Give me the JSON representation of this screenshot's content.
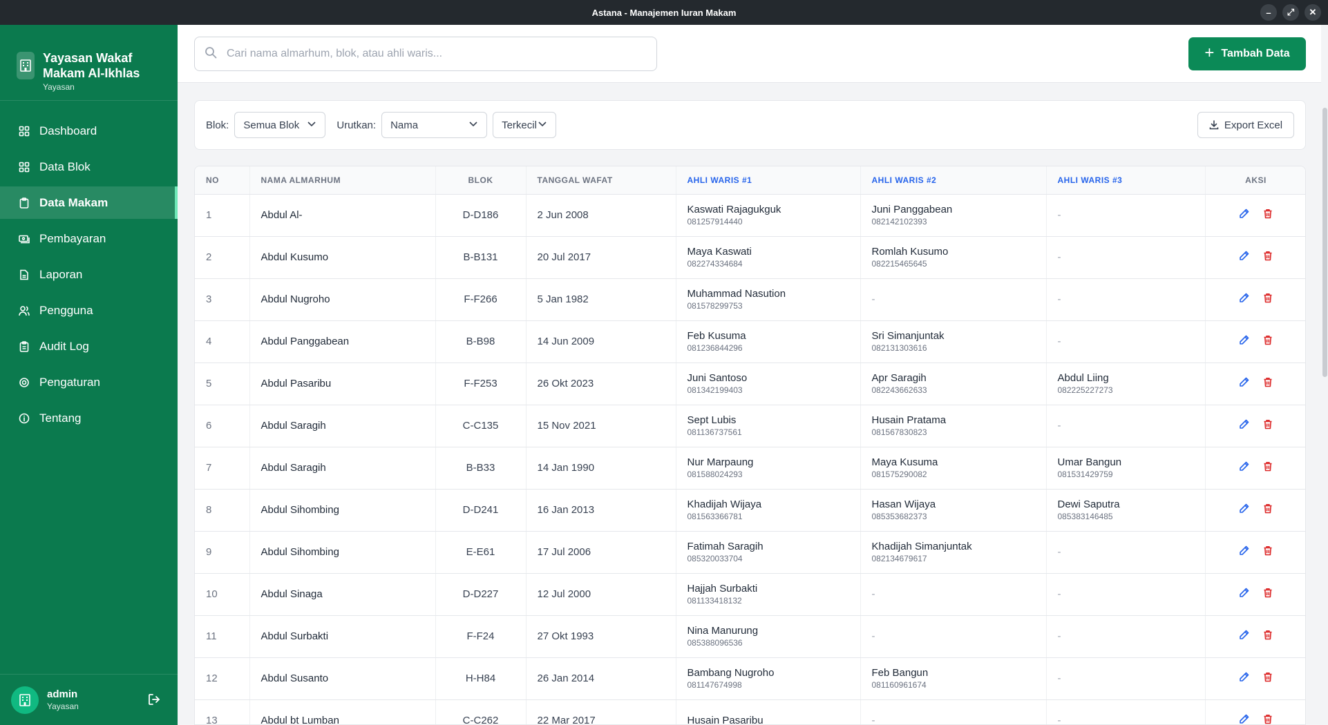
{
  "window": {
    "title": "Astana - Manajemen Iuran Makam"
  },
  "sidebar": {
    "org_name": "Yayasan Wakaf Makam Al-Ikhlas",
    "org_type": "Yayasan",
    "items": [
      {
        "label": "Dashboard",
        "icon": "grid-icon"
      },
      {
        "label": "Data Blok",
        "icon": "grid-icon"
      },
      {
        "label": "Data Makam",
        "icon": "clipboard-icon",
        "active": true
      },
      {
        "label": "Pembayaran",
        "icon": "payment-icon"
      },
      {
        "label": "Laporan",
        "icon": "document-icon"
      },
      {
        "label": "Pengguna",
        "icon": "users-icon"
      },
      {
        "label": "Audit Log",
        "icon": "clipboard-list-icon"
      },
      {
        "label": "Pengaturan",
        "icon": "gear-icon"
      },
      {
        "label": "Tentang",
        "icon": "info-icon"
      }
    ],
    "user": {
      "name": "admin",
      "role": "Yayasan"
    }
  },
  "header": {
    "search_placeholder": "Cari nama almarhum, blok, atau ahli waris...",
    "add_label": "Tambah Data"
  },
  "filters": {
    "blok_label": "Blok:",
    "blok_value": "Semua Blok",
    "sort_label": "Urutkan:",
    "sort_value": "Nama",
    "order_value": "Terkecil",
    "export_label": "Export Excel"
  },
  "colors": {
    "sidebar": "#0b7a4e",
    "primary": "#0b8a57",
    "heir_header": "#2563eb",
    "edit": "#2563eb",
    "delete": "#dc2626"
  },
  "table": {
    "headers": [
      "NO",
      "NAMA ALMARHUM",
      "BLOK",
      "TANGGAL WAFAT",
      "AHLI WARIS #1",
      "AHLI WARIS #2",
      "AHLI WARIS #3",
      "AKSI"
    ],
    "rows": [
      {
        "no": "1",
        "name": "Abdul Al-",
        "blok": "D-D186",
        "date": "2 Jun 2008",
        "h1": "Kaswati Rajagukguk",
        "p1": "081257914440",
        "h2": "Juni Panggabean",
        "p2": "082142102393",
        "h3": "",
        "p3": ""
      },
      {
        "no": "2",
        "name": "Abdul Kusumo",
        "blok": "B-B131",
        "date": "20 Jul 2017",
        "h1": "Maya Kaswati",
        "p1": "082274334684",
        "h2": "Romlah Kusumo",
        "p2": "082215465645",
        "h3": "",
        "p3": ""
      },
      {
        "no": "3",
        "name": "Abdul Nugroho",
        "blok": "F-F266",
        "date": "5 Jan 1982",
        "h1": "Muhammad Nasution",
        "p1": "081578299753",
        "h2": "",
        "p2": "",
        "h3": "",
        "p3": ""
      },
      {
        "no": "4",
        "name": "Abdul Panggabean",
        "blok": "B-B98",
        "date": "14 Jun 2009",
        "h1": "Feb Kusuma",
        "p1": "081236844296",
        "h2": "Sri Simanjuntak",
        "p2": "082131303616",
        "h3": "",
        "p3": ""
      },
      {
        "no": "5",
        "name": "Abdul Pasaribu",
        "blok": "F-F253",
        "date": "26 Okt 2023",
        "h1": "Juni Santoso",
        "p1": "081342199403",
        "h2": "Apr Saragih",
        "p2": "082243662633",
        "h3": "Abdul Liing",
        "p3": "082225227273"
      },
      {
        "no": "6",
        "name": "Abdul Saragih",
        "blok": "C-C135",
        "date": "15 Nov 2021",
        "h1": "Sept Lubis",
        "p1": "081136737561",
        "h2": "Husain Pratama",
        "p2": "081567830823",
        "h3": "",
        "p3": ""
      },
      {
        "no": "7",
        "name": "Abdul Saragih",
        "blok": "B-B33",
        "date": "14 Jan 1990",
        "h1": "Nur Marpaung",
        "p1": "081588024293",
        "h2": "Maya Kusuma",
        "p2": "081575290082",
        "h3": "Umar Bangun",
        "p3": "081531429759"
      },
      {
        "no": "8",
        "name": "Abdul Sihombing",
        "blok": "D-D241",
        "date": "16 Jan 2013",
        "h1": "Khadijah Wijaya",
        "p1": "081563366781",
        "h2": "Hasan Wijaya",
        "p2": "085353682373",
        "h3": "Dewi Saputra",
        "p3": "085383146485"
      },
      {
        "no": "9",
        "name": "Abdul Sihombing",
        "blok": "E-E61",
        "date": "17 Jul 2006",
        "h1": "Fatimah Saragih",
        "p1": "085320033704",
        "h2": "Khadijah Simanjuntak",
        "p2": "082134679617",
        "h3": "",
        "p3": ""
      },
      {
        "no": "10",
        "name": "Abdul Sinaga",
        "blok": "D-D227",
        "date": "12 Jul 2000",
        "h1": "Hajjah Surbakti",
        "p1": "081133418132",
        "h2": "",
        "p2": "",
        "h3": "",
        "p3": ""
      },
      {
        "no": "11",
        "name": "Abdul Surbakti",
        "blok": "F-F24",
        "date": "27 Okt 1993",
        "h1": "Nina Manurung",
        "p1": "085388096536",
        "h2": "",
        "p2": "",
        "h3": "",
        "p3": ""
      },
      {
        "no": "12",
        "name": "Abdul Susanto",
        "blok": "H-H84",
        "date": "26 Jan 2014",
        "h1": "Bambang Nugroho",
        "p1": "081147674998",
        "h2": "Feb Bangun",
        "p2": "081160961674",
        "h3": "",
        "p3": ""
      },
      {
        "no": "13",
        "name": "Abdul bt Lumban",
        "blok": "C-C262",
        "date": "22 Mar 2017",
        "h1": "Husain Pasaribu",
        "p1": "",
        "h2": "",
        "p2": "",
        "h3": "",
        "p3": ""
      }
    ],
    "empty_mark": "-"
  }
}
